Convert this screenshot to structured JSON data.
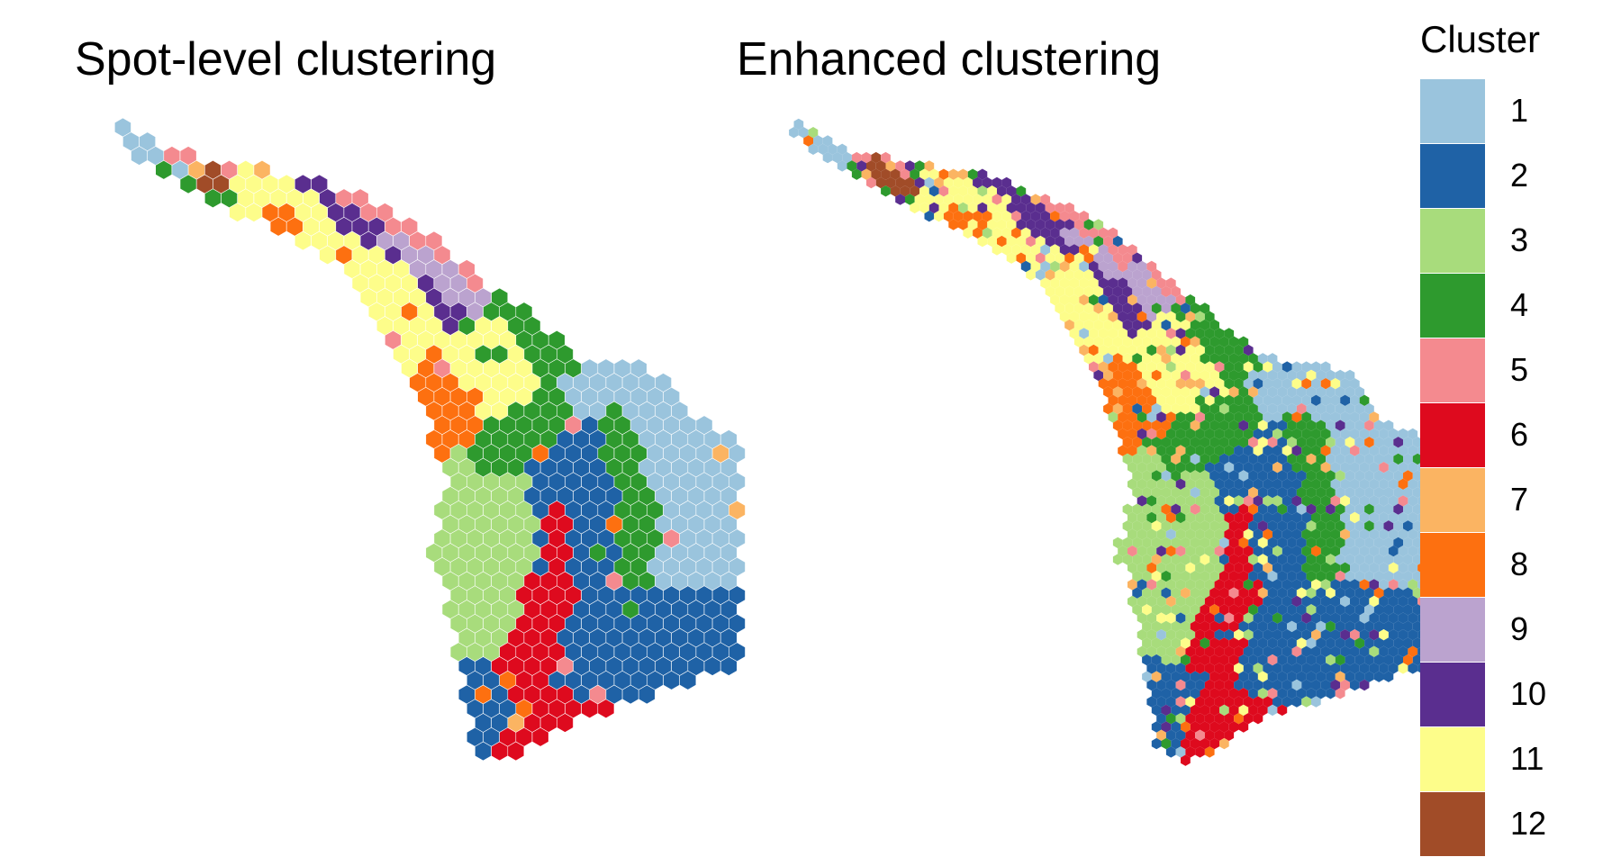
{
  "panels": {
    "left_title": "Spot-level clustering",
    "right_title": "Enhanced clustering"
  },
  "legend": {
    "title": "Cluster",
    "items": [
      {
        "label": "1",
        "color": "#9ac4dd"
      },
      {
        "label": "2",
        "color": "#1f62a6"
      },
      {
        "label": "3",
        "color": "#a8dc7c"
      },
      {
        "label": "4",
        "color": "#2e9a2e"
      },
      {
        "label": "5",
        "color": "#f48a8f"
      },
      {
        "label": "6",
        "color": "#de0a1e"
      },
      {
        "label": "7",
        "color": "#fbb462"
      },
      {
        "label": "8",
        "color": "#fd7010"
      },
      {
        "label": "9",
        "color": "#bba3cf"
      },
      {
        "label": "10",
        "color": "#5a2e8f"
      },
      {
        "label": "11",
        "color": "#fdfd8a"
      },
      {
        "label": "12",
        "color": "#a14c28"
      }
    ]
  },
  "chart_data": [
    {
      "type": "heatmap",
      "title": "Spot-level clustering",
      "xlabel": "",
      "ylabel": "",
      "grid": false,
      "legend_placement": "right",
      "legend_title": "Cluster",
      "categories": [
        "1",
        "2",
        "3",
        "4",
        "5",
        "6",
        "7",
        "8",
        "9",
        "10",
        "11",
        "12"
      ]
    },
    {
      "type": "heatmap",
      "title": "Enhanced clustering",
      "xlabel": "",
      "ylabel": "",
      "grid": false,
      "legend_placement": "right",
      "legend_title": "Cluster",
      "categories": [
        "1",
        "2",
        "3",
        "4",
        "5",
        "6",
        "7",
        "8",
        "9",
        "10",
        "11",
        "12"
      ]
    }
  ]
}
